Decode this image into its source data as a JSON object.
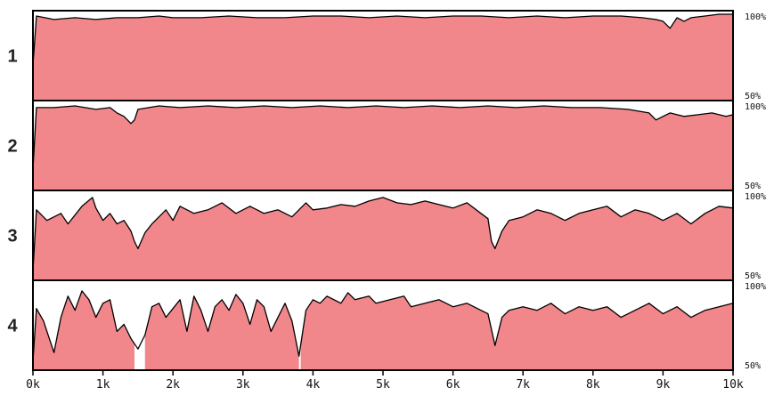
{
  "colors": {
    "fill": "#f2878b",
    "outline": "#000000",
    "panel_border": "#000000",
    "background": "#ffffff"
  },
  "chart_data": {
    "type": "area",
    "title": "",
    "xlabel": "",
    "ylabel": "",
    "x_ticks": [
      "0k",
      "1k",
      "2k",
      "3k",
      "4k",
      "5k",
      "6k",
      "7k",
      "8k",
      "9k",
      "10k"
    ],
    "xlim": [
      0,
      10000
    ],
    "ylim": [
      50,
      100
    ],
    "y_labels": {
      "top": "100%",
      "bottom": "50%"
    },
    "grid": false,
    "legend": "none",
    "tracks": [
      {
        "label": "1",
        "gaps": [],
        "points": [
          [
            0,
            70
          ],
          [
            50,
            98
          ],
          [
            300,
            96
          ],
          [
            600,
            97
          ],
          [
            900,
            96
          ],
          [
            1200,
            97
          ],
          [
            1500,
            97
          ],
          [
            1800,
            98
          ],
          [
            2000,
            97
          ],
          [
            2400,
            97
          ],
          [
            2800,
            98
          ],
          [
            3200,
            97
          ],
          [
            3600,
            97
          ],
          [
            4000,
            98
          ],
          [
            4400,
            98
          ],
          [
            4800,
            97
          ],
          [
            5200,
            98
          ],
          [
            5600,
            97
          ],
          [
            6000,
            98
          ],
          [
            6400,
            98
          ],
          [
            6800,
            97
          ],
          [
            7200,
            98
          ],
          [
            7600,
            97
          ],
          [
            8000,
            98
          ],
          [
            8400,
            98
          ],
          [
            8700,
            97
          ],
          [
            8900,
            96
          ],
          [
            9000,
            95
          ],
          [
            9100,
            91
          ],
          [
            9200,
            97
          ],
          [
            9300,
            95
          ],
          [
            9400,
            97
          ],
          [
            9600,
            98
          ],
          [
            9800,
            99
          ],
          [
            10000,
            99
          ]
        ]
      },
      {
        "label": "2",
        "gaps": [],
        "points": [
          [
            0,
            62
          ],
          [
            50,
            97
          ],
          [
            300,
            97
          ],
          [
            600,
            98
          ],
          [
            900,
            96
          ],
          [
            1100,
            97
          ],
          [
            1200,
            94
          ],
          [
            1300,
            92
          ],
          [
            1400,
            88
          ],
          [
            1450,
            90
          ],
          [
            1500,
            96
          ],
          [
            1800,
            98
          ],
          [
            2100,
            97
          ],
          [
            2500,
            98
          ],
          [
            2900,
            97
          ],
          [
            3300,
            98
          ],
          [
            3700,
            97
          ],
          [
            4100,
            98
          ],
          [
            4500,
            97
          ],
          [
            4900,
            98
          ],
          [
            5300,
            97
          ],
          [
            5700,
            98
          ],
          [
            6100,
            97
          ],
          [
            6500,
            98
          ],
          [
            6900,
            97
          ],
          [
            7300,
            98
          ],
          [
            7700,
            97
          ],
          [
            8100,
            97
          ],
          [
            8500,
            96
          ],
          [
            8800,
            94
          ],
          [
            8900,
            90
          ],
          [
            9000,
            92
          ],
          [
            9100,
            94
          ],
          [
            9300,
            92
          ],
          [
            9500,
            93
          ],
          [
            9700,
            94
          ],
          [
            9900,
            92
          ],
          [
            10000,
            93
          ]
        ]
      },
      {
        "label": "3",
        "gaps": [],
        "points": [
          [
            0,
            55
          ],
          [
            50,
            90
          ],
          [
            200,
            84
          ],
          [
            400,
            88
          ],
          [
            500,
            82
          ],
          [
            700,
            92
          ],
          [
            850,
            97
          ],
          [
            900,
            91
          ],
          [
            1000,
            84
          ],
          [
            1100,
            88
          ],
          [
            1200,
            82
          ],
          [
            1300,
            84
          ],
          [
            1400,
            78
          ],
          [
            1450,
            72
          ],
          [
            1500,
            68
          ],
          [
            1600,
            77
          ],
          [
            1700,
            82
          ],
          [
            1800,
            86
          ],
          [
            1900,
            90
          ],
          [
            2000,
            84
          ],
          [
            2100,
            92
          ],
          [
            2300,
            88
          ],
          [
            2500,
            90
          ],
          [
            2700,
            94
          ],
          [
            2900,
            88
          ],
          [
            3100,
            92
          ],
          [
            3300,
            88
          ],
          [
            3500,
            90
          ],
          [
            3700,
            86
          ],
          [
            3900,
            94
          ],
          [
            4000,
            90
          ],
          [
            4200,
            91
          ],
          [
            4400,
            93
          ],
          [
            4600,
            92
          ],
          [
            4800,
            95
          ],
          [
            5000,
            97
          ],
          [
            5200,
            94
          ],
          [
            5400,
            93
          ],
          [
            5600,
            95
          ],
          [
            5800,
            93
          ],
          [
            6000,
            91
          ],
          [
            6200,
            94
          ],
          [
            6400,
            88
          ],
          [
            6500,
            85
          ],
          [
            6550,
            72
          ],
          [
            6600,
            68
          ],
          [
            6700,
            78
          ],
          [
            6800,
            84
          ],
          [
            7000,
            86
          ],
          [
            7200,
            90
          ],
          [
            7400,
            88
          ],
          [
            7600,
            84
          ],
          [
            7800,
            88
          ],
          [
            8000,
            90
          ],
          [
            8200,
            92
          ],
          [
            8400,
            86
          ],
          [
            8600,
            90
          ],
          [
            8800,
            88
          ],
          [
            9000,
            84
          ],
          [
            9200,
            88
          ],
          [
            9400,
            82
          ],
          [
            9600,
            88
          ],
          [
            9800,
            92
          ],
          [
            10000,
            91
          ]
        ]
      },
      {
        "label": "4",
        "gaps": [
          [
            1450,
            1600
          ],
          [
            3800,
            3820
          ]
        ],
        "points": [
          [
            0,
            55
          ],
          [
            50,
            85
          ],
          [
            150,
            78
          ],
          [
            300,
            60
          ],
          [
            400,
            80
          ],
          [
            500,
            92
          ],
          [
            600,
            84
          ],
          [
            700,
            95
          ],
          [
            800,
            90
          ],
          [
            900,
            80
          ],
          [
            1000,
            88
          ],
          [
            1100,
            90
          ],
          [
            1200,
            72
          ],
          [
            1300,
            76
          ],
          [
            1400,
            68
          ],
          [
            1500,
            62
          ],
          [
            1600,
            70
          ],
          [
            1700,
            86
          ],
          [
            1800,
            88
          ],
          [
            1900,
            80
          ],
          [
            2000,
            85
          ],
          [
            2100,
            90
          ],
          [
            2200,
            72
          ],
          [
            2300,
            92
          ],
          [
            2400,
            84
          ],
          [
            2500,
            72
          ],
          [
            2600,
            86
          ],
          [
            2700,
            90
          ],
          [
            2800,
            84
          ],
          [
            2900,
            93
          ],
          [
            3000,
            88
          ],
          [
            3100,
            76
          ],
          [
            3200,
            90
          ],
          [
            3300,
            86
          ],
          [
            3400,
            72
          ],
          [
            3500,
            80
          ],
          [
            3600,
            88
          ],
          [
            3700,
            78
          ],
          [
            3800,
            58
          ],
          [
            3900,
            84
          ],
          [
            4000,
            90
          ],
          [
            4100,
            88
          ],
          [
            4200,
            92
          ],
          [
            4400,
            88
          ],
          [
            4500,
            94
          ],
          [
            4600,
            90
          ],
          [
            4800,
            92
          ],
          [
            4900,
            88
          ],
          [
            5100,
            90
          ],
          [
            5300,
            92
          ],
          [
            5400,
            86
          ],
          [
            5600,
            88
          ],
          [
            5800,
            90
          ],
          [
            6000,
            86
          ],
          [
            6200,
            88
          ],
          [
            6400,
            84
          ],
          [
            6500,
            82
          ],
          [
            6600,
            64
          ],
          [
            6700,
            80
          ],
          [
            6800,
            84
          ],
          [
            7000,
            86
          ],
          [
            7200,
            84
          ],
          [
            7400,
            88
          ],
          [
            7600,
            82
          ],
          [
            7800,
            86
          ],
          [
            8000,
            84
          ],
          [
            8200,
            86
          ],
          [
            8400,
            80
          ],
          [
            8600,
            84
          ],
          [
            8800,
            88
          ],
          [
            9000,
            82
          ],
          [
            9200,
            86
          ],
          [
            9400,
            80
          ],
          [
            9600,
            84
          ],
          [
            9800,
            86
          ],
          [
            10000,
            88
          ]
        ]
      }
    ]
  }
}
